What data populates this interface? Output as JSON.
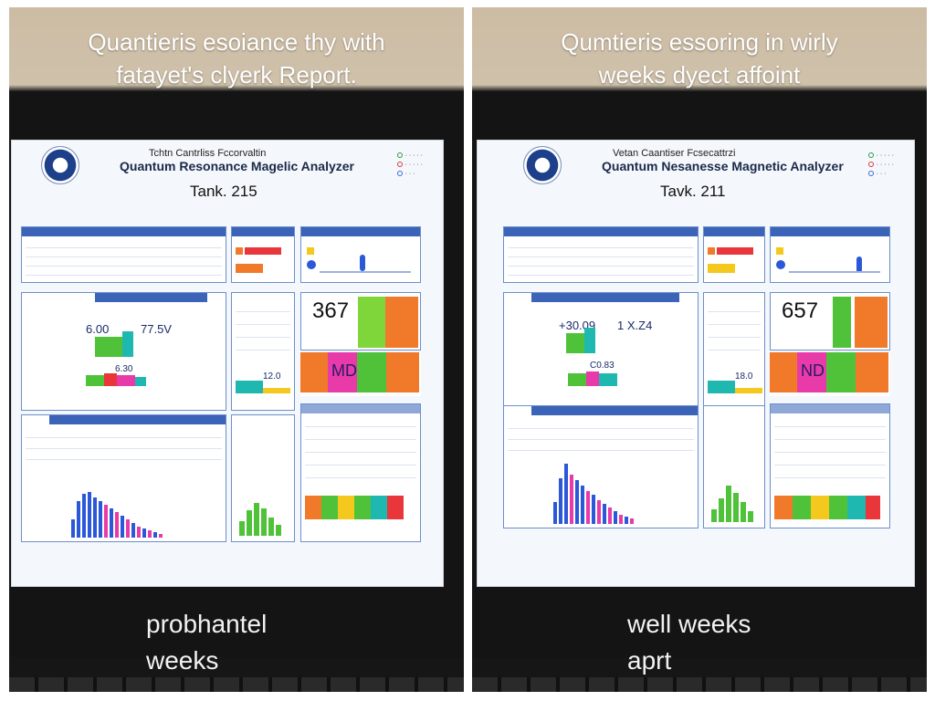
{
  "captions": {
    "left_top": [
      "Quantieris esoiance thy with",
      "fatayet's clyerk Report."
    ],
    "left_bottom": [
      "probhantel",
      "weeks"
    ],
    "right_top": [
      "Qumtieris essoring in wirly",
      "weeks dyect affoint"
    ],
    "right_bottom": [
      "well weeks",
      "aprt"
    ]
  },
  "left_screen": {
    "subtitle": "Tchtn Cantrliss Fccorvaltin",
    "title": "Quantum Resonance Magelic Analyzer",
    "task": "Tank. 215",
    "big_number": "367",
    "value_a": "6.00",
    "value_b": "77.5V",
    "value_c": "12.0",
    "mid_label": "6.30",
    "block_text": "MD"
  },
  "right_screen": {
    "subtitle": "Vetan Caantiser Fcsecattrzi",
    "title": "Quantum Nesanesse Magnetic Analyzer",
    "task": "Tavk. 211",
    "big_number": "657",
    "value_a": "+30.09",
    "value_b": "1 X.Z4",
    "value_c": "18.0",
    "mid_label": "C0.83",
    "block_text": "ND"
  },
  "colors": {
    "header_blue": "#3b63b8",
    "green": "#4fc23a",
    "orange": "#f07a2a",
    "magenta": "#e83aa8",
    "teal": "#1fb8b0",
    "blue": "#2a58d8",
    "yellow": "#f4c81c",
    "red": "#e8363a"
  }
}
